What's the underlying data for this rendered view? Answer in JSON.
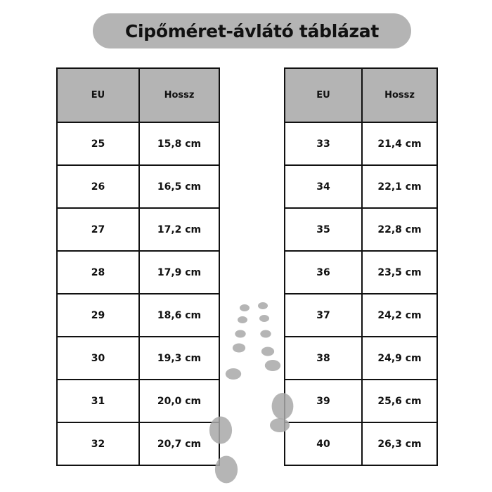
{
  "title": "Cipőméret-ávlátó táblázat",
  "tables": [
    {
      "headers": [
        "EU",
        "Hossz"
      ],
      "rows": [
        [
          "25",
          "15,8 cm"
        ],
        [
          "26",
          "16,5 cm"
        ],
        [
          "27",
          "17,2 cm"
        ],
        [
          "28",
          "17,9 cm"
        ],
        [
          "29",
          "18,6 cm"
        ],
        [
          "30",
          "19,3 cm"
        ],
        [
          "31",
          "20,0 cm"
        ],
        [
          "32",
          "20,7 cm"
        ]
      ]
    },
    {
      "headers": [
        "EU",
        "Hossz"
      ],
      "rows": [
        [
          "33",
          "21,4 cm"
        ],
        [
          "34",
          "22,1 cm"
        ],
        [
          "35",
          "22,8 cm"
        ],
        [
          "36",
          "23,5 cm"
        ],
        [
          "37",
          "24,2 cm"
        ],
        [
          "38",
          "24,9 cm"
        ],
        [
          "39",
          "25,6 cm"
        ],
        [
          "40",
          "26,3 cm"
        ]
      ]
    }
  ],
  "colors": {
    "header_bg": "#b4b4b4",
    "footprint": "#a8a8a8"
  },
  "decoration": "footprints-icon"
}
